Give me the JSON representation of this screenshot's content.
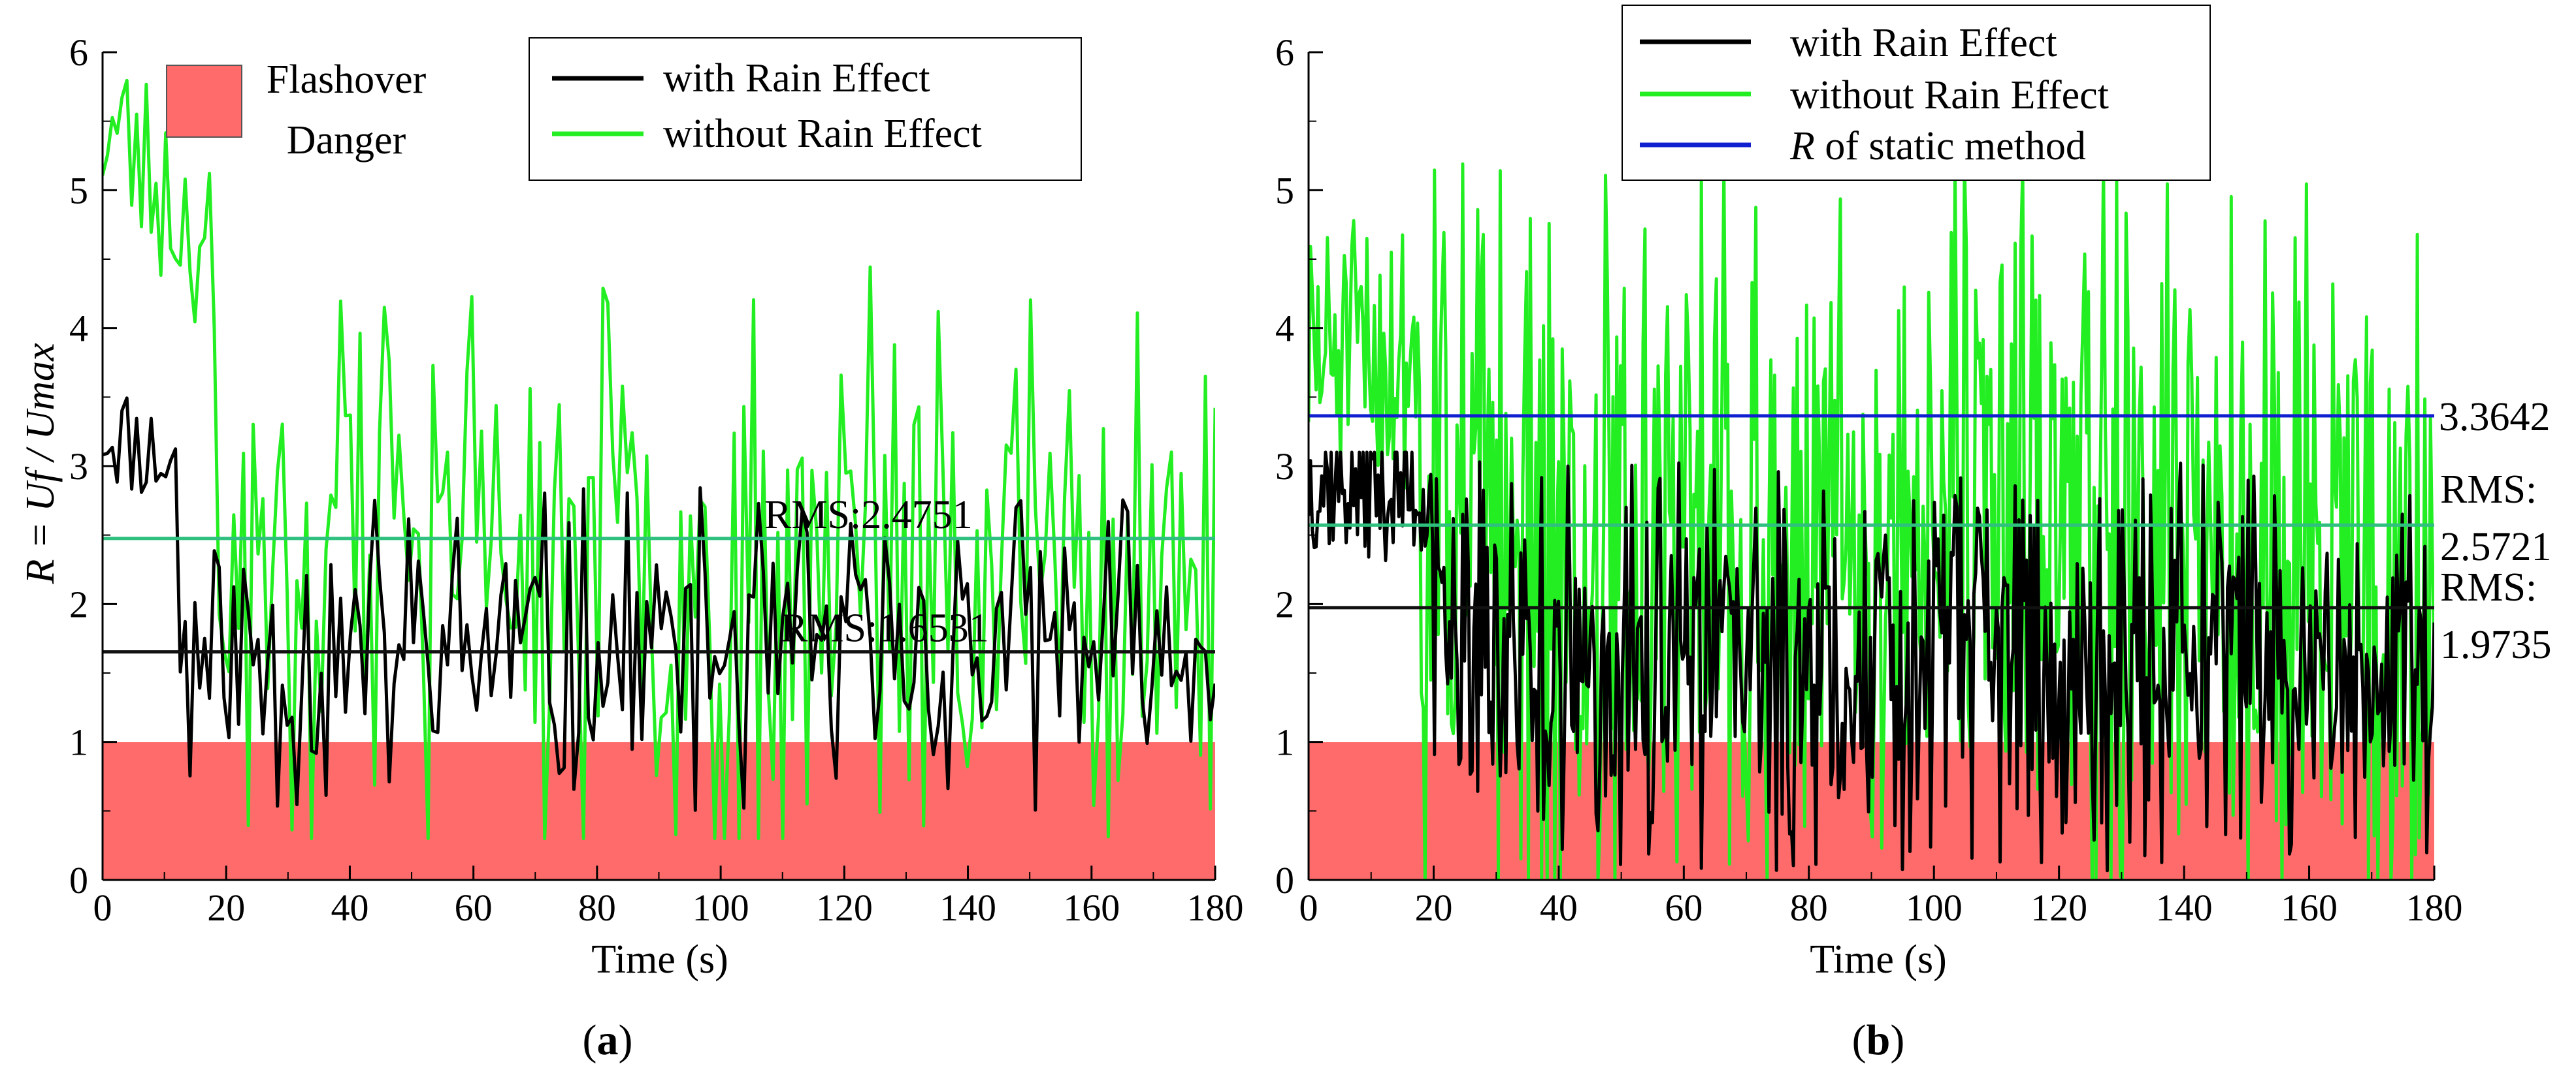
{
  "figure": {
    "danger_color": "#ff6b6b",
    "colors": {
      "with_rain": "#000000",
      "without_rain": "#22ee22",
      "static": "#1020d0",
      "rms_with": "#111111",
      "rms_without": "#2fbf7f",
      "rms_text_without": "#6b6b3a",
      "static_text": "#1a2a6a"
    }
  },
  "chart_data": [
    {
      "type": "line",
      "panel_label": "(a)",
      "panel_label_parts": {
        "open": "(",
        "letter": "a",
        "close": ")"
      },
      "xlabel": "Time (s)",
      "ylabel": "R = Uf / Umax",
      "xlim": [
        0,
        180
      ],
      "ylim": [
        0,
        6
      ],
      "xticks": [
        "0",
        "20",
        "40",
        "60",
        "80",
        "100",
        "120",
        "140",
        "160",
        "180"
      ],
      "yticks": [
        "0",
        "1",
        "2",
        "3",
        "4",
        "5",
        "6"
      ],
      "danger_zone": {
        "y_from": 0,
        "y_to": 1
      },
      "danger_legend_lines": [
        "Flashover",
        "Danger"
      ],
      "legend": [
        "with Rain Effect",
        "without Rain Effect"
      ],
      "rms_lines": [
        {
          "series": "without Rain Effect",
          "value": 2.4751,
          "label": "RMS:2.4751"
        },
        {
          "series": "with Rain Effect",
          "value": 1.6531,
          "label": "RMS:1.6531"
        }
      ],
      "series": [
        {
          "name": "with Rain Effect",
          "key": "with_rain",
          "seed": 11,
          "start": 3.3,
          "base": 1.65,
          "amp": 1.2,
          "init_len": 12,
          "init_level": 3.0,
          "min": 0.25,
          "max": 3.6,
          "n": 230
        },
        {
          "name": "without Rain Effect",
          "key": "without_rain",
          "seed": 23,
          "start": 5.5,
          "base": 2.25,
          "amp": 2.2,
          "init_len": 18,
          "init_level": 4.6,
          "min": 0.3,
          "max": 5.9,
          "n": 230
        }
      ]
    },
    {
      "type": "line",
      "panel_label": "(b)",
      "panel_label_parts": {
        "open": "(",
        "letter": "b",
        "close": ")"
      },
      "xlabel": "Time (s)",
      "ylabel": "",
      "xlim": [
        0,
        180
      ],
      "ylim": [
        0,
        6
      ],
      "xticks": [
        "0",
        "20",
        "40",
        "60",
        "80",
        "100",
        "120",
        "140",
        "160",
        "180"
      ],
      "yticks": [
        "0",
        "1",
        "2",
        "3",
        "4",
        "5",
        "6"
      ],
      "danger_zone": {
        "y_from": 0,
        "y_to": 1
      },
      "legend": [
        "with Rain Effect",
        "without Rain Effect",
        "R of static method"
      ],
      "legend_italic_prefix": "R",
      "legend_static_rest": " of static method",
      "static_line": {
        "value": 3.3642,
        "label": "3.3642"
      },
      "rms_lines": [
        {
          "series": "without Rain Effect",
          "value": 2.5721,
          "label_lines": [
            "RMS:",
            "2.5721"
          ]
        },
        {
          "series": "with Rain Effect",
          "value": 1.9735,
          "label_lines": [
            "RMS:",
            "1.9735"
          ]
        }
      ],
      "series": [
        {
          "name": "with Rain Effect",
          "key": "with_rain",
          "seed": 37,
          "start": 2.9,
          "base": 1.55,
          "amp": 1.5,
          "init_len": 20,
          "init_level": 2.8,
          "min": 0.0,
          "max": 3.1,
          "n": 600
        },
        {
          "name": "without Rain Effect",
          "key": "without_rain",
          "seed": 51,
          "start": 3.8,
          "base": 2.4,
          "amp": 2.8,
          "init_len": 18,
          "init_level": 3.8,
          "min": 0.0,
          "max": 5.6,
          "n": 600
        }
      ]
    }
  ]
}
